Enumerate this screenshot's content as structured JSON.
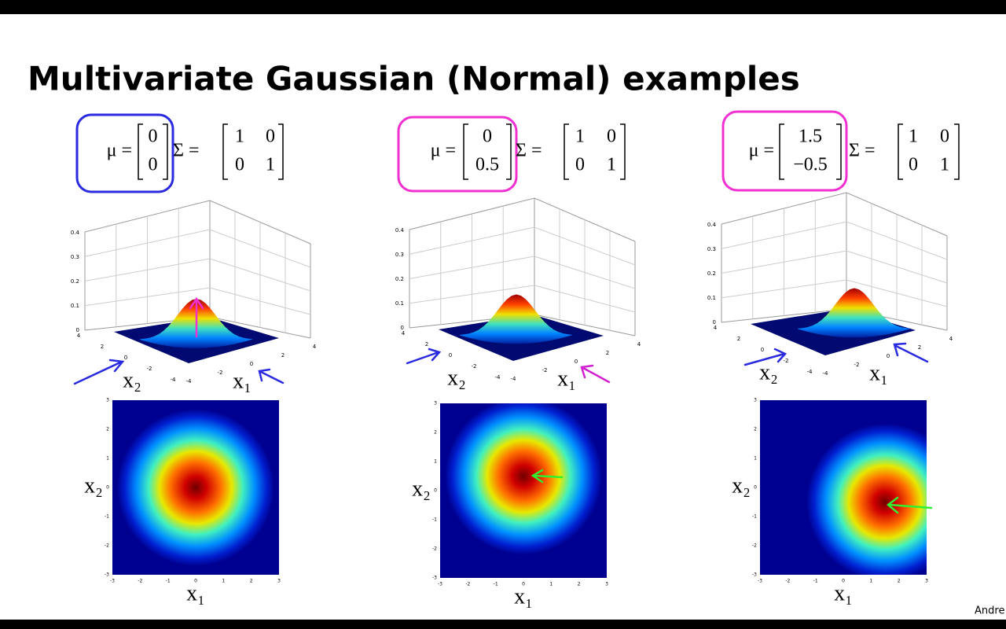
{
  "title": "Multivariate Gaussian (Normal) examples",
  "mu_label": "μ =",
  "sigma_label": "Σ =",
  "panels": [
    {
      "mu": [
        "0",
        "0"
      ],
      "sigma": [
        [
          "1",
          "0"
        ],
        [
          "0",
          "1"
        ]
      ]
    },
    {
      "mu": [
        "0",
        "0.5"
      ],
      "sigma": [
        [
          "1",
          "0"
        ],
        [
          "0",
          "1"
        ]
      ]
    },
    {
      "mu": [
        "1.5",
        "−0.5"
      ],
      "sigma": [
        [
          "1",
          "0"
        ],
        [
          "0",
          "1"
        ]
      ]
    }
  ],
  "surface_zticks": [
    "0",
    "0.1",
    "0.2",
    "0.3",
    "0.4"
  ],
  "surface_xyticks": [
    "-4",
    "-2",
    "0",
    "2",
    "4"
  ],
  "heatmap_ticks": [
    "-3",
    "-2",
    "-1",
    "0",
    "1",
    "2",
    "3"
  ],
  "axis_labels": {
    "x1": "x₁",
    "x2": "x₂"
  },
  "footer": "Andre"
}
